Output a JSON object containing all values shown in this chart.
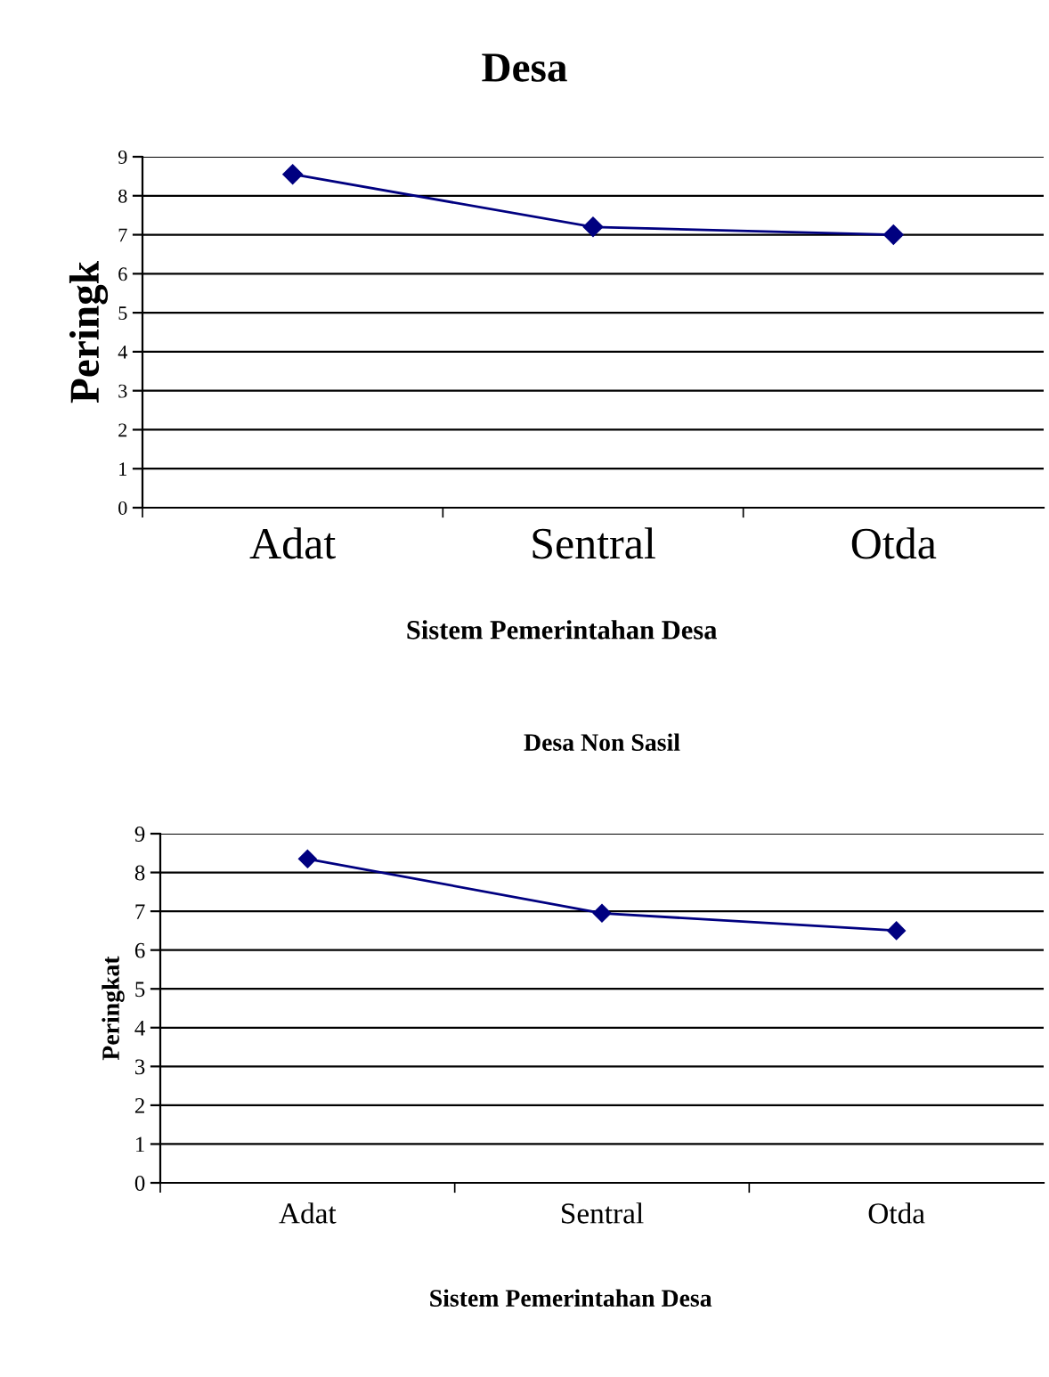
{
  "chart_data": [
    {
      "type": "line",
      "title": "Desa",
      "xlabel": "Sistem Pemerintahan Desa",
      "ylabel": "Peringk",
      "categories": [
        "Adat",
        "Sentral",
        "Otda"
      ],
      "series": [
        {
          "color": "#000080",
          "values": [
            8.55,
            7.2,
            7.0
          ]
        }
      ],
      "ylim": [
        0,
        9
      ],
      "yticks": [
        0,
        1,
        2,
        3,
        4,
        5,
        6,
        7,
        8,
        9
      ],
      "grid": "y",
      "marker": "diamond",
      "line_style": "solid"
    },
    {
      "type": "line",
      "title": "Desa Non Sasil",
      "xlabel": "Sistem Pemerintahan Desa",
      "ylabel": "Peringkat",
      "categories": [
        "Adat",
        "Sentral",
        "Otda"
      ],
      "series": [
        {
          "color": "#000080",
          "values": [
            8.35,
            6.95,
            6.5
          ]
        }
      ],
      "ylim": [
        0,
        9
      ],
      "yticks": [
        0,
        1,
        2,
        3,
        4,
        5,
        6,
        7,
        8,
        9
      ],
      "grid": "y",
      "marker": "diamond",
      "line_style": "solid"
    }
  ]
}
